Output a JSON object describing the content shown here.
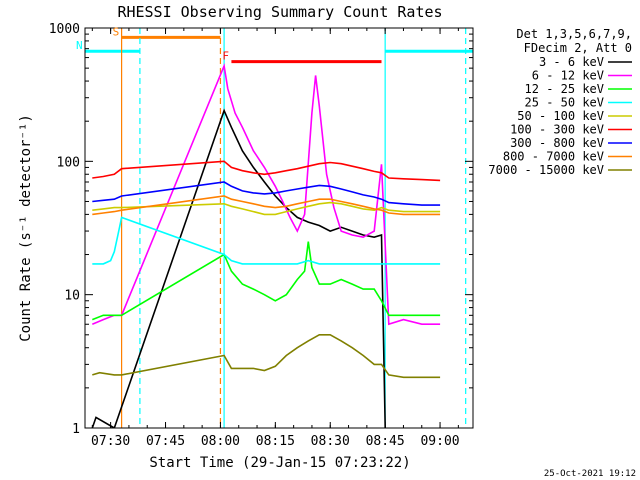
{
  "chart_data": {
    "type": "line",
    "title": "RHESSI Observing Summary Count Rates",
    "xlabel": "Start Time (29-Jan-15 07:23:22)",
    "ylabel": "Count Rate (s⁻¹ detector⁻¹)",
    "yscale": "log",
    "xlim_minutes": [
      -7,
      99
    ],
    "ylim": [
      1,
      1000
    ],
    "x_ticks": [
      {
        "label": "07:30",
        "minute": 0
      },
      {
        "label": "07:45",
        "minute": 15
      },
      {
        "label": "08:00",
        "minute": 30
      },
      {
        "label": "08:15",
        "minute": 45
      },
      {
        "label": "08:30",
        "minute": 60
      },
      {
        "label": "08:45",
        "minute": 75
      },
      {
        "label": "09:00",
        "minute": 90
      }
    ],
    "y_ticks": [
      {
        "label": "1",
        "value": 1
      },
      {
        "label": "10",
        "value": 10
      },
      {
        "label": "100",
        "value": 100
      },
      {
        "label": "1000",
        "value": 1000
      }
    ],
    "legend": {
      "placement": "right",
      "header": [
        "Det 1,3,5,6,7,9,",
        "FDecim 2, Att 0"
      ]
    },
    "series": [
      {
        "name": "3 - 6 keV",
        "color": "#000000",
        "points": [
          [
            -5,
            1
          ],
          [
            -4,
            1.2
          ],
          [
            1,
            1
          ],
          [
            31,
            240
          ],
          [
            33,
            180
          ],
          [
            36,
            120
          ],
          [
            39,
            90
          ],
          [
            42,
            70
          ],
          [
            45,
            55
          ],
          [
            48,
            45
          ],
          [
            51,
            38
          ],
          [
            54,
            35
          ],
          [
            57,
            33
          ],
          [
            60,
            30
          ],
          [
            63,
            32
          ],
          [
            66,
            30
          ],
          [
            69,
            28
          ],
          [
            72,
            27
          ],
          [
            74,
            28
          ],
          [
            75,
            1
          ]
        ]
      },
      {
        "name": "6 - 12 keV",
        "color": "#ff00ff",
        "points": [
          [
            -5,
            6
          ],
          [
            -2,
            6.5
          ],
          [
            1,
            7
          ],
          [
            3,
            7
          ],
          [
            31,
            520
          ],
          [
            32,
            350
          ],
          [
            34,
            230
          ],
          [
            36,
            180
          ],
          [
            39,
            120
          ],
          [
            42,
            90
          ],
          [
            45,
            65
          ],
          [
            47,
            50
          ],
          [
            49,
            38
          ],
          [
            51,
            30
          ],
          [
            53,
            40
          ],
          [
            55,
            230
          ],
          [
            56,
            440
          ],
          [
            57,
            260
          ],
          [
            59,
            80
          ],
          [
            61,
            45
          ],
          [
            63,
            30
          ],
          [
            66,
            28
          ],
          [
            69,
            27
          ],
          [
            72,
            30
          ],
          [
            74,
            95
          ],
          [
            76,
            6
          ],
          [
            80,
            6.5
          ],
          [
            85,
            6
          ],
          [
            90,
            6
          ]
        ]
      },
      {
        "name": "12 - 25 keV",
        "color": "#00ff00",
        "points": [
          [
            -5,
            6.5
          ],
          [
            -2,
            7
          ],
          [
            1,
            7
          ],
          [
            3,
            7
          ],
          [
            31,
            20
          ],
          [
            33,
            15
          ],
          [
            36,
            12
          ],
          [
            39,
            11
          ],
          [
            42,
            10
          ],
          [
            45,
            9
          ],
          [
            48,
            10
          ],
          [
            51,
            13
          ],
          [
            53,
            15
          ],
          [
            54,
            25
          ],
          [
            55,
            16
          ],
          [
            57,
            12
          ],
          [
            60,
            12
          ],
          [
            63,
            13
          ],
          [
            66,
            12
          ],
          [
            69,
            11
          ],
          [
            72,
            11
          ],
          [
            74,
            9
          ],
          [
            76,
            7
          ],
          [
            80,
            7
          ],
          [
            85,
            7
          ],
          [
            90,
            7
          ]
        ]
      },
      {
        "name": "25 - 50 keV",
        "color": "#00ffff",
        "points": [
          [
            -5,
            17
          ],
          [
            -2,
            17
          ],
          [
            0,
            18
          ],
          [
            1,
            21
          ],
          [
            2,
            28
          ],
          [
            3,
            38
          ],
          [
            31,
            20
          ],
          [
            33,
            18
          ],
          [
            36,
            17
          ],
          [
            39,
            17
          ],
          [
            42,
            17
          ],
          [
            45,
            17
          ],
          [
            48,
            17
          ],
          [
            51,
            17
          ],
          [
            54,
            18
          ],
          [
            57,
            17
          ],
          [
            60,
            17
          ],
          [
            63,
            17
          ],
          [
            66,
            17
          ],
          [
            69,
            17
          ],
          [
            72,
            17
          ],
          [
            74,
            17
          ],
          [
            76,
            17
          ],
          [
            80,
            17
          ],
          [
            85,
            17
          ],
          [
            90,
            17
          ]
        ]
      },
      {
        "name": "50 - 100 keV",
        "color": "#cccc00",
        "points": [
          [
            -5,
            43
          ],
          [
            -2,
            44
          ],
          [
            1,
            45
          ],
          [
            3,
            45
          ],
          [
            31,
            48
          ],
          [
            33,
            46
          ],
          [
            36,
            44
          ],
          [
            39,
            42
          ],
          [
            42,
            40
          ],
          [
            45,
            40
          ],
          [
            48,
            42
          ],
          [
            51,
            44
          ],
          [
            54,
            46
          ],
          [
            57,
            48
          ],
          [
            60,
            49
          ],
          [
            63,
            48
          ],
          [
            66,
            46
          ],
          [
            69,
            44
          ],
          [
            72,
            43
          ],
          [
            74,
            45
          ],
          [
            76,
            43
          ],
          [
            80,
            42
          ],
          [
            85,
            42
          ],
          [
            90,
            42
          ]
        ]
      },
      {
        "name": "100 - 300 keV",
        "color": "#ff0000",
        "points": [
          [
            -5,
            75
          ],
          [
            -2,
            77
          ],
          [
            1,
            80
          ],
          [
            3,
            88
          ],
          [
            31,
            100
          ],
          [
            33,
            90
          ],
          [
            36,
            85
          ],
          [
            39,
            82
          ],
          [
            42,
            80
          ],
          [
            45,
            82
          ],
          [
            48,
            85
          ],
          [
            51,
            88
          ],
          [
            54,
            92
          ],
          [
            57,
            96
          ],
          [
            60,
            98
          ],
          [
            63,
            96
          ],
          [
            66,
            92
          ],
          [
            69,
            88
          ],
          [
            72,
            84
          ],
          [
            74,
            82
          ],
          [
            76,
            75
          ],
          [
            80,
            74
          ],
          [
            85,
            73
          ],
          [
            90,
            72
          ]
        ]
      },
      {
        "name": "300 - 800 keV",
        "color": "#0000ff",
        "points": [
          [
            -5,
            50
          ],
          [
            -2,
            51
          ],
          [
            1,
            52
          ],
          [
            3,
            55
          ],
          [
            31,
            70
          ],
          [
            33,
            65
          ],
          [
            36,
            60
          ],
          [
            39,
            58
          ],
          [
            42,
            57
          ],
          [
            45,
            58
          ],
          [
            48,
            60
          ],
          [
            51,
            62
          ],
          [
            54,
            64
          ],
          [
            57,
            66
          ],
          [
            60,
            65
          ],
          [
            63,
            62
          ],
          [
            66,
            59
          ],
          [
            69,
            56
          ],
          [
            72,
            54
          ],
          [
            74,
            52
          ],
          [
            76,
            49
          ],
          [
            80,
            48
          ],
          [
            85,
            47
          ],
          [
            90,
            47
          ]
        ]
      },
      {
        "name": "800 - 7000 keV",
        "color": "#ff8000",
        "points": [
          [
            -5,
            40
          ],
          [
            -2,
            41
          ],
          [
            1,
            42
          ],
          [
            3,
            43
          ],
          [
            31,
            55
          ],
          [
            33,
            52
          ],
          [
            36,
            50
          ],
          [
            39,
            48
          ],
          [
            42,
            46
          ],
          [
            45,
            45
          ],
          [
            48,
            46
          ],
          [
            51,
            48
          ],
          [
            54,
            50
          ],
          [
            57,
            52
          ],
          [
            60,
            52
          ],
          [
            63,
            50
          ],
          [
            66,
            48
          ],
          [
            69,
            46
          ],
          [
            72,
            44
          ],
          [
            74,
            43
          ],
          [
            76,
            41
          ],
          [
            80,
            40
          ],
          [
            85,
            40
          ],
          [
            90,
            40
          ]
        ]
      },
      {
        "name": "7000 - 15000 keV",
        "color": "#808000",
        "points": [
          [
            -5,
            2.5
          ],
          [
            -3,
            2.6
          ],
          [
            1,
            2.5
          ],
          [
            3,
            2.5
          ],
          [
            31,
            3.5
          ],
          [
            33,
            2.8
          ],
          [
            36,
            2.8
          ],
          [
            39,
            2.8
          ],
          [
            42,
            2.7
          ],
          [
            45,
            2.9
          ],
          [
            48,
            3.5
          ],
          [
            51,
            4
          ],
          [
            54,
            4.5
          ],
          [
            57,
            5
          ],
          [
            60,
            5
          ],
          [
            63,
            4.5
          ],
          [
            66,
            4
          ],
          [
            69,
            3.5
          ],
          [
            72,
            3
          ],
          [
            74,
            3
          ],
          [
            76,
            2.5
          ],
          [
            80,
            2.4
          ],
          [
            85,
            2.4
          ],
          [
            90,
            2.4
          ]
        ]
      }
    ],
    "bars": [
      {
        "label": "S",
        "color": "#ff8000",
        "x_start": 3,
        "x_end": 30,
        "level": 850
      },
      {
        "label": "N",
        "color": "#00ffff",
        "x_start": -7,
        "x_end": 8,
        "level": 670
      },
      {
        "label": "F",
        "color": "#ff0000",
        "x_start": 33,
        "x_end": 74,
        "level": 560
      },
      {
        "label": "",
        "color": "#00ffff",
        "x_start": 75,
        "x_end": 99,
        "level": 670
      }
    ],
    "vertical_lines": [
      {
        "minute": 3,
        "color": "#ff8000",
        "style": "solid"
      },
      {
        "minute": 8,
        "color": "#00ffff",
        "style": "dashed"
      },
      {
        "minute": 30,
        "color": "#ff8000",
        "style": "dashed"
      },
      {
        "minute": 31,
        "color": "#00ffff",
        "style": "solid"
      },
      {
        "minute": 75,
        "color": "#00ffff",
        "style": "solid"
      },
      {
        "minute": 97,
        "color": "#00ffff",
        "style": "dashed"
      }
    ],
    "timestamp": "25-Oct-2021 19:12"
  }
}
